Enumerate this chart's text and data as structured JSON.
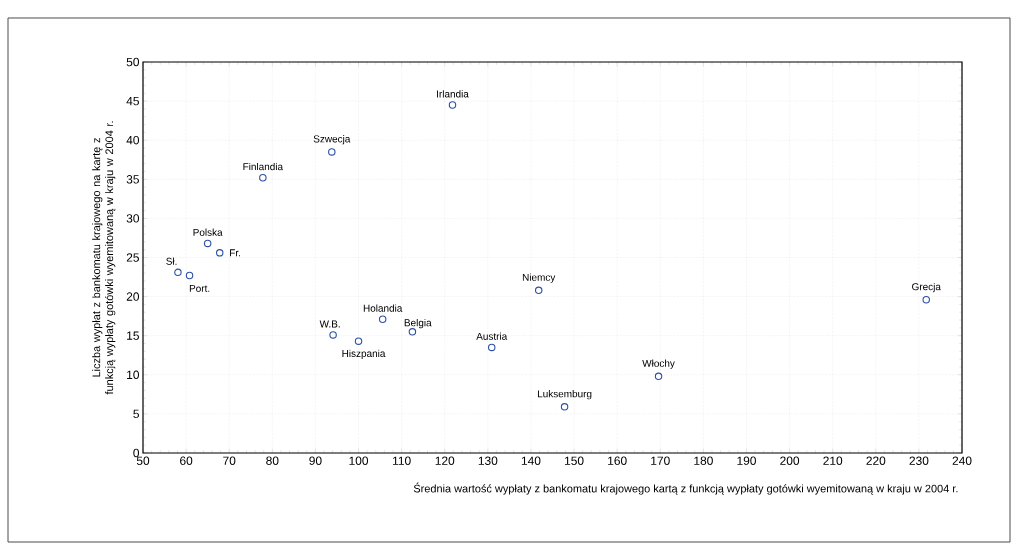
{
  "chart_data": {
    "type": "scatter",
    "xlabel": "Średnia wartość wypłaty z bankomatu krajowego kartą z funkcją wypłaty gotówki wyemitowaną w kraju w 2004 r.",
    "ylabel": "Liczba wypłat z bankomatu krajowego na kartę z funkcją wypłaty gotówki wyemitowaną w kraju w 2004 r.",
    "x": [
      58.1,
      60.8,
      65.0,
      67.8,
      77.8,
      93.8,
      121.8,
      94.1,
      100.0,
      105.6,
      112.5,
      130.9,
      141.8,
      231.7,
      169.6,
      147.8
    ],
    "values": [
      23.1,
      22.7,
      26.8,
      25.6,
      35.2,
      38.5,
      44.5,
      15.1,
      14.3,
      17.1,
      15.5,
      13.5,
      20.8,
      19.6,
      9.8,
      5.9
    ],
    "color": "#2b4fa8",
    "marker": "circle",
    "grid": true,
    "xlim": [
      50,
      240
    ],
    "xticks": [
      50,
      60,
      70,
      80,
      90,
      100,
      110,
      120,
      130,
      140,
      150,
      160,
      170,
      180,
      190,
      200,
      210,
      220,
      230,
      240
    ],
    "ylim": [
      0,
      50
    ],
    "yticks": [
      0,
      5,
      10,
      15,
      20,
      25,
      30,
      35,
      40,
      45,
      50
    ],
    "annotations": [
      {
        "text": "Sł.",
        "x": 58.1,
        "y": 23.1
      },
      {
        "text": "Port.",
        "x": 60.8,
        "y": 22.7
      },
      {
        "text": "Polska",
        "x": 65.0,
        "y": 26.8
      },
      {
        "text": "Fr.",
        "x": 67.8,
        "y": 25.6
      },
      {
        "text": "Finlandia",
        "x": 77.8,
        "y": 35.2
      },
      {
        "text": "Szwecja",
        "x": 93.8,
        "y": 38.5
      },
      {
        "text": "Irlandia",
        "x": 121.8,
        "y": 44.5
      },
      {
        "text": "W.B.",
        "x": 94.1,
        "y": 15.1
      },
      {
        "text": "Hiszpania",
        "x": 100.0,
        "y": 14.3
      },
      {
        "text": "Holandia",
        "x": 105.6,
        "y": 17.1
      },
      {
        "text": "Belgia",
        "x": 112.5,
        "y": 15.5
      },
      {
        "text": "Austria",
        "x": 130.9,
        "y": 13.5
      },
      {
        "text": "Niemcy",
        "x": 141.8,
        "y": 20.8
      },
      {
        "text": "Grecja",
        "x": 231.7,
        "y": 19.6
      },
      {
        "text": "Włochy",
        "x": 169.6,
        "y": 9.8
      },
      {
        "text": "Luksemburg",
        "x": 147.8,
        "y": 5.9
      }
    ]
  }
}
